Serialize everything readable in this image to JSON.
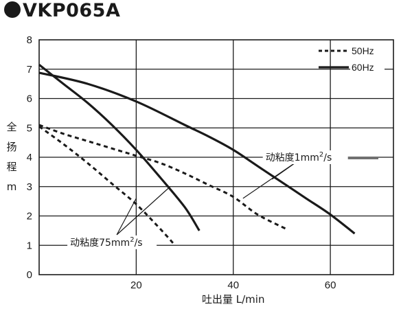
{
  "title": "VKP065A",
  "chart_data": {
    "type": "line",
    "xlabel": "吐出量  L/min",
    "ylabel": [
      "全",
      "扬",
      "程",
      "m"
    ],
    "xlim": [
      0,
      73
    ],
    "ylim": [
      0,
      8
    ],
    "xticks": [
      "20",
      "40",
      "60"
    ],
    "xtick_values": [
      20,
      40,
      60
    ],
    "yticks": [
      "0",
      "1",
      "2",
      "3",
      "4",
      "5",
      "6",
      "7",
      "8"
    ],
    "ytick_values": [
      0,
      1,
      2,
      3,
      4,
      5,
      6,
      7,
      8
    ],
    "grid": true,
    "legend_position": "top-right",
    "legend": [
      {
        "label": "50Hz",
        "style": "dashed"
      },
      {
        "label": "60Hz",
        "style": "solid"
      }
    ],
    "series": [
      {
        "name": "50Hz",
        "style": "dashed",
        "viscosity": "1mm2/s",
        "x": [
          0,
          5,
          10,
          15,
          20,
          25,
          30,
          35,
          40,
          45,
          51
        ],
        "y": [
          5.1,
          4.8,
          4.55,
          4.3,
          4.05,
          3.8,
          3.45,
          3.05,
          2.65,
          2.05,
          1.55
        ]
      },
      {
        "name": "60Hz",
        "style": "solid",
        "viscosity": "1mm2/s",
        "x": [
          0,
          10,
          20,
          30,
          35,
          40,
          45,
          50,
          55,
          60,
          65
        ],
        "y": [
          6.88,
          6.5,
          5.9,
          5.1,
          4.7,
          4.25,
          3.7,
          3.15,
          2.6,
          2.05,
          1.4
        ]
      },
      {
        "name": "50Hz",
        "style": "dashed",
        "viscosity": "75mm2/s",
        "x": [
          0,
          5,
          10,
          15,
          20,
          25,
          28
        ],
        "y": [
          5.05,
          4.45,
          3.8,
          3.1,
          2.4,
          1.55,
          1.0
        ]
      },
      {
        "name": "60Hz",
        "style": "solid",
        "viscosity": "75mm2/s",
        "x": [
          0,
          5,
          10,
          15,
          20,
          25,
          30,
          33
        ],
        "y": [
          7.15,
          6.5,
          5.85,
          5.1,
          4.25,
          3.3,
          2.3,
          1.5
        ]
      }
    ],
    "annotations": [
      {
        "text_main": "动粘度1mm",
        "sup": "2",
        "text_tail": "/s",
        "targets": [
          [
            42,
            2.6
          ],
          [
            48,
            3.25
          ]
        ],
        "anchor": [
          54,
          4.0
        ]
      },
      {
        "text_main": "动粘度75mm",
        "sup": "2",
        "text_tail": "/s",
        "targets": [
          [
            20,
            2.6
          ],
          [
            27,
            3.0
          ]
        ],
        "anchor": [
          16,
          1.5
        ]
      }
    ]
  }
}
